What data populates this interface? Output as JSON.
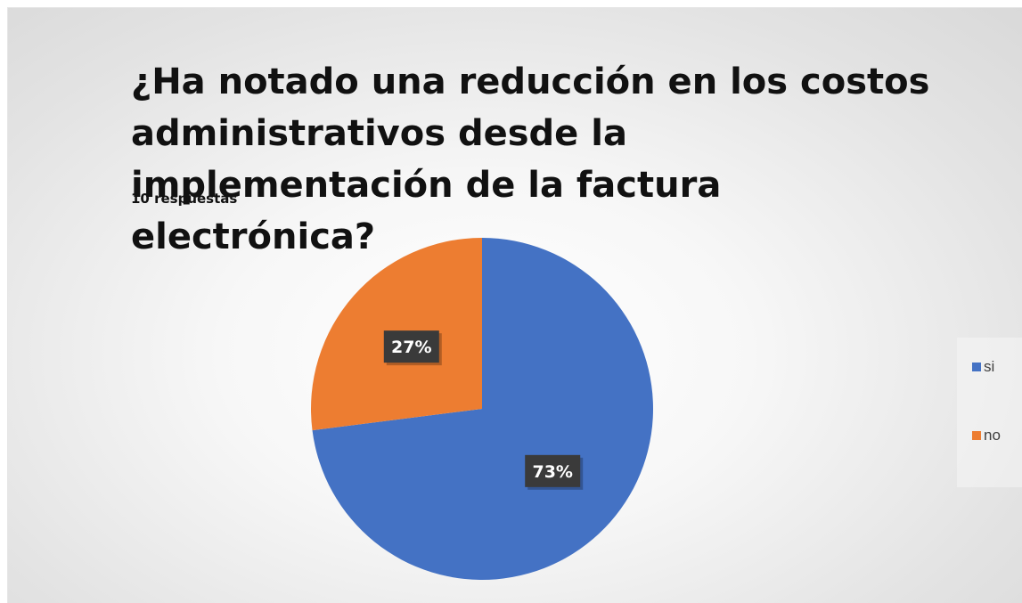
{
  "chart_data": {
    "type": "pie",
    "title": "¿Ha notado una reducción en los costos administrativos desde la implementación de la factura electrónica?",
    "subtitle": "10 respuestas",
    "categories": [
      "si",
      "no"
    ],
    "values": [
      73,
      27
    ],
    "value_labels": [
      "73%",
      "27%"
    ],
    "colors": [
      "#4472C4",
      "#ED7D31"
    ],
    "legend_position": "right"
  }
}
